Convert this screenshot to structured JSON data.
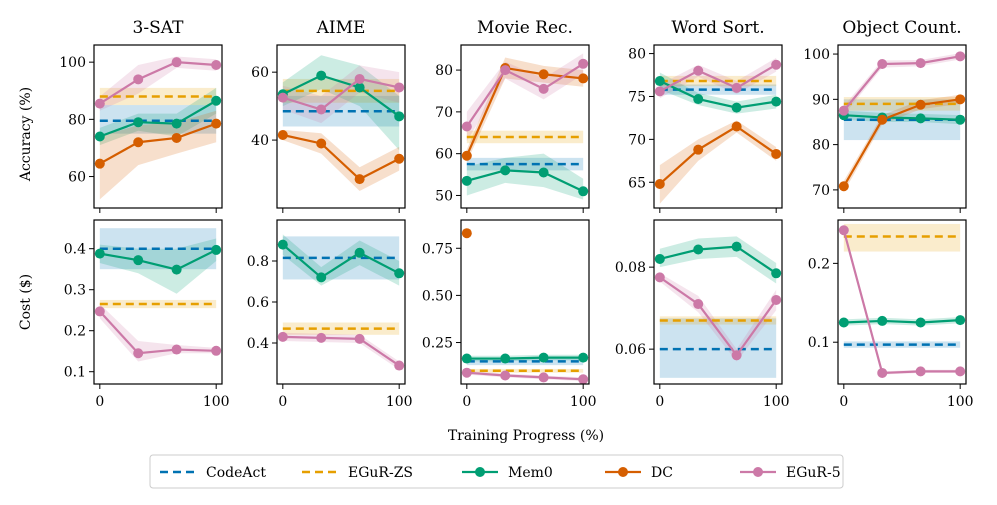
{
  "chart_data": {
    "type": "line",
    "xlabel": "Training Progress (%)",
    "x": [
      0,
      33,
      66,
      100
    ],
    "x_ticks": [
      0,
      100
    ],
    "row_ylabels": [
      "Accuracy (%)",
      "Cost ($)"
    ],
    "colors": {
      "CodeAct": "#0072B2",
      "EGuR-ZS": "#E69F00",
      "Mem0": "#009E73",
      "DC": "#D55E00",
      "EGuR-5": "#CC79A7"
    },
    "legend": [
      {
        "name": "CodeAct",
        "style": "dashed"
      },
      {
        "name": "EGuR-ZS",
        "style": "dashed"
      },
      {
        "name": "Mem0",
        "style": "marker"
      },
      {
        "name": "DC",
        "style": "marker"
      },
      {
        "name": "EGuR-5",
        "style": "marker"
      }
    ],
    "panels": [
      {
        "row": 0,
        "col": 0,
        "title": "3-SAT",
        "ylim": [
          49,
          106
        ],
        "yticks": [
          60,
          80,
          100
        ],
        "series": [
          {
            "name": "CodeAct",
            "kind": "const",
            "value": 79.5,
            "band": [
              75,
              85
            ]
          },
          {
            "name": "EGuR-ZS",
            "kind": "const",
            "value": 88,
            "band": [
              85,
              91
            ]
          },
          {
            "name": "Mem0",
            "values": [
              74,
              79,
              78.5,
              86.5
            ],
            "lo": [
              71,
              76,
              74,
              82
            ],
            "hi": [
              77,
              82,
              82,
              91
            ]
          },
          {
            "name": "DC",
            "values": [
              64.5,
              72,
              73.5,
              78.5
            ],
            "lo": [
              52,
              64,
              68,
              72
            ],
            "hi": [
              74,
              78,
              79,
              83
            ]
          },
          {
            "name": "EGuR-5",
            "values": [
              85.5,
              94,
              100,
              99
            ],
            "lo": [
              83,
              89,
              98,
              97
            ],
            "hi": [
              88,
              99,
              102,
              101
            ]
          }
        ]
      },
      {
        "row": 0,
        "col": 1,
        "title": "AIME",
        "ylim": [
          20,
          68
        ],
        "yticks": [
          40,
          60
        ],
        "series": [
          {
            "name": "CodeAct",
            "kind": "const",
            "value": 48.5,
            "band": [
              44,
              53
            ]
          },
          {
            "name": "EGuR-ZS",
            "kind": "const",
            "value": 54.5,
            "band": [
              51,
              58
            ]
          },
          {
            "name": "Mem0",
            "values": [
              53.5,
              59,
              55.5,
              47
            ],
            "lo": [
              50,
              55,
              50,
              37
            ],
            "hi": [
              57,
              65,
              62,
              53
            ]
          },
          {
            "name": "DC",
            "values": [
              41.5,
              39,
              28.5,
              34.5
            ],
            "lo": [
              40,
              36,
              25,
              31
            ],
            "hi": [
              43,
              42,
              32,
              38
            ]
          },
          {
            "name": "EGuR-5",
            "values": [
              52.5,
              49,
              58,
              55.5
            ],
            "lo": [
              49,
              45,
              54,
              51
            ],
            "hi": [
              56,
              53,
              62,
              60
            ]
          }
        ]
      },
      {
        "row": 0,
        "col": 2,
        "title": "Movie Rec.",
        "ylim": [
          47,
          86
        ],
        "yticks": [
          50,
          60,
          70,
          80
        ],
        "series": [
          {
            "name": "CodeAct",
            "kind": "const",
            "value": 57.5,
            "band": [
              56,
              59
            ]
          },
          {
            "name": "EGuR-ZS",
            "kind": "const",
            "value": 64,
            "band": [
              62.5,
              65.5
            ]
          },
          {
            "name": "Mem0",
            "values": [
              53.5,
              56,
              55.5,
              51
            ],
            "lo": [
              50,
              53,
              52,
              49
            ],
            "hi": [
              57,
              59,
              60,
              54
            ]
          },
          {
            "name": "DC",
            "values": [
              59.5,
              80.5,
              79,
              78
            ],
            "lo": [
              58,
              78,
              77,
              76
            ],
            "hi": [
              61,
              83,
              81,
              80
            ]
          },
          {
            "name": "EGuR-5",
            "values": [
              66.5,
              80,
              75.5,
              81.5
            ],
            "lo": [
              63,
              78,
              73,
              79
            ],
            "hi": [
              70,
              82,
              78,
              84
            ]
          }
        ]
      },
      {
        "row": 0,
        "col": 3,
        "title": "Word Sort.",
        "ylim": [
          62,
          81
        ],
        "yticks": [
          65,
          70,
          75,
          80
        ],
        "series": [
          {
            "name": "CodeAct",
            "kind": "const",
            "value": 75.8,
            "band": [
              75.2,
              76.4
            ]
          },
          {
            "name": "EGuR-ZS",
            "kind": "const",
            "value": 76.8,
            "band": [
              76.2,
              77.4
            ]
          },
          {
            "name": "Mem0",
            "values": [
              76.8,
              74.7,
              73.7,
              74.4
            ],
            "lo": [
              75.8,
              74,
              73,
              73.6
            ],
            "hi": [
              77.8,
              75.4,
              74.4,
              75.2
            ]
          },
          {
            "name": "DC",
            "values": [
              64.8,
              68.8,
              71.5,
              68.3
            ],
            "lo": [
              62.5,
              67.5,
              70.8,
              67.5
            ],
            "hi": [
              67,
              70,
              72.2,
              69.1
            ]
          },
          {
            "name": "EGuR-5",
            "values": [
              75.6,
              78,
              76,
              78.7
            ],
            "lo": [
              74.8,
              77.3,
              75.3,
              77.9
            ],
            "hi": [
              76.4,
              78.7,
              76.8,
              79.5
            ]
          }
        ]
      },
      {
        "row": 0,
        "col": 4,
        "title": "Object Count.",
        "ylim": [
          66,
          102
        ],
        "yticks": [
          70,
          80,
          90,
          100
        ],
        "series": [
          {
            "name": "CodeAct",
            "kind": "const",
            "value": 85.5,
            "band": [
              81,
              90
            ]
          },
          {
            "name": "EGuR-ZS",
            "kind": "const",
            "value": 89,
            "band": [
              87.5,
              90.5
            ]
          },
          {
            "name": "Mem0",
            "values": [
              86.5,
              86,
              85.8,
              85.5
            ],
            "lo": [
              85.5,
              85,
              85,
              84.5
            ],
            "hi": [
              87.5,
              87,
              86.8,
              86.5
            ]
          },
          {
            "name": "DC",
            "values": [
              70.8,
              85.5,
              88.8,
              90
            ],
            "lo": [
              69.5,
              84.5,
              87.8,
              89
            ],
            "hi": [
              72,
              86.5,
              89.8,
              91
            ]
          },
          {
            "name": "EGuR-5",
            "values": [
              87.5,
              97.8,
              98,
              99.5
            ],
            "lo": [
              86.5,
              97,
              97.3,
              98.8
            ],
            "hi": [
              88.5,
              98.6,
              98.7,
              100.2
            ]
          }
        ]
      },
      {
        "row": 1,
        "col": 0,
        "title": "",
        "ylim": [
          0.07,
          0.47
        ],
        "yticks": [
          0.1,
          0.2,
          0.3,
          0.4
        ],
        "ytick_labels": [
          "0.1",
          "0.2",
          "0.3",
          "0.4"
        ],
        "series": [
          {
            "name": "CodeAct",
            "kind": "const",
            "value": 0.4,
            "band": [
              0.35,
              0.45
            ]
          },
          {
            "name": "EGuR-ZS",
            "kind": "const",
            "value": 0.265,
            "band": [
              0.255,
              0.275
            ]
          },
          {
            "name": "Mem0",
            "values": [
              0.388,
              0.372,
              0.349,
              0.397
            ],
            "lo": [
              0.365,
              0.34,
              0.29,
              0.37
            ],
            "hi": [
              0.41,
              0.4,
              0.4,
              0.425
            ]
          },
          {
            "name": "EGuR-5",
            "values": [
              0.247,
              0.145,
              0.154,
              0.151
            ],
            "lo": [
              0.23,
              0.125,
              0.145,
              0.145
            ],
            "hi": [
              0.265,
              0.175,
              0.165,
              0.158
            ]
          }
        ]
      },
      {
        "row": 1,
        "col": 1,
        "title": "",
        "ylim": [
          0.2,
          1.0
        ],
        "yticks": [
          0.4,
          0.6,
          0.8
        ],
        "ytick_labels": [
          "0.4",
          "0.6",
          "0.8"
        ],
        "series": [
          {
            "name": "CodeAct",
            "kind": "const",
            "value": 0.815,
            "band": [
              0.71,
              0.92
            ]
          },
          {
            "name": "EGuR-ZS",
            "kind": "const",
            "value": 0.47,
            "band": [
              0.44,
              0.5
            ]
          },
          {
            "name": "Mem0",
            "values": [
              0.88,
              0.72,
              0.84,
              0.74
            ],
            "lo": [
              0.83,
              0.68,
              0.78,
              0.68
            ],
            "hi": [
              0.93,
              0.77,
              0.9,
              0.8
            ]
          },
          {
            "name": "EGuR-5",
            "values": [
              0.43,
              0.425,
              0.42,
              0.29
            ],
            "lo": [
              0.41,
              0.405,
              0.4,
              0.27
            ],
            "hi": [
              0.45,
              0.445,
              0.44,
              0.31
            ]
          }
        ]
      },
      {
        "row": 1,
        "col": 2,
        "title": "",
        "ylim": [
          0.03,
          0.9
        ],
        "yticks": [
          0.25,
          0.5,
          0.75
        ],
        "ytick_labels": [
          "0.25",
          "0.50",
          "0.75"
        ],
        "series": [
          {
            "name": "CodeAct",
            "kind": "const",
            "value": 0.15,
            "band": [
              0.13,
              0.17
            ]
          },
          {
            "name": "EGuR-ZS",
            "kind": "const",
            "value": 0.1,
            "band": [
              0.09,
              0.11
            ]
          },
          {
            "name": "Mem0",
            "values": [
              0.165,
              0.165,
              0.17,
              0.17
            ],
            "lo": [
              0.15,
              0.15,
              0.155,
              0.155
            ],
            "hi": [
              0.18,
              0.18,
              0.185,
              0.185
            ]
          },
          {
            "name": "DC",
            "values": [
              0.83,
              null,
              null,
              null
            ]
          },
          {
            "name": "EGuR-5",
            "values": [
              0.09,
              0.075,
              0.065,
              0.055
            ],
            "lo": [
              0.08,
              0.065,
              0.055,
              0.045
            ],
            "hi": [
              0.1,
              0.085,
              0.075,
              0.065
            ]
          }
        ]
      },
      {
        "row": 1,
        "col": 3,
        "title": "",
        "ylim": [
          0.0515,
          0.0915
        ],
        "yticks": [
          0.06,
          0.08
        ],
        "ytick_labels": [
          "0.06",
          "0.08"
        ],
        "series": [
          {
            "name": "CodeAct",
            "kind": "const",
            "value": 0.06,
            "band": [
              0.053,
              0.0675
            ]
          },
          {
            "name": "EGuR-ZS",
            "kind": "const",
            "value": 0.067,
            "band": [
              0.066,
              0.068
            ]
          },
          {
            "name": "Mem0",
            "values": [
              0.082,
              0.0843,
              0.085,
              0.0785
            ],
            "lo": [
              0.08,
              0.082,
              0.0825,
              0.076
            ],
            "hi": [
              0.0845,
              0.087,
              0.0875,
              0.081
            ]
          },
          {
            "name": "EGuR-5",
            "values": [
              0.0775,
              0.071,
              0.0585,
              0.072
            ],
            "lo": [
              0.0765,
              0.069,
              0.057,
              0.0695
            ],
            "hi": [
              0.0785,
              0.073,
              0.06,
              0.0745
            ]
          }
        ]
      },
      {
        "row": 1,
        "col": 4,
        "title": "",
        "ylim": [
          0.047,
          0.255
        ],
        "yticks": [
          0.1,
          0.2
        ],
        "ytick_labels": [
          "0.1",
          "0.2"
        ],
        "series": [
          {
            "name": "CodeAct",
            "kind": "const",
            "value": 0.097,
            "band": [
              0.093,
              0.101
            ]
          },
          {
            "name": "EGuR-ZS",
            "kind": "const",
            "value": 0.234,
            "band": [
              0.215,
              0.25
            ]
          },
          {
            "name": "Mem0",
            "values": [
              0.125,
              0.127,
              0.125,
              0.128
            ],
            "lo": [
              0.121,
              0.123,
              0.121,
              0.124
            ],
            "hi": [
              0.129,
              0.131,
              0.129,
              0.132
            ]
          },
          {
            "name": "EGuR-5",
            "values": [
              0.242,
              0.061,
              0.063,
              0.063
            ],
            "lo": [
              0.238,
              0.059,
              0.061,
              0.061
            ],
            "hi": [
              0.246,
              0.063,
              0.065,
              0.065
            ]
          }
        ]
      }
    ]
  }
}
